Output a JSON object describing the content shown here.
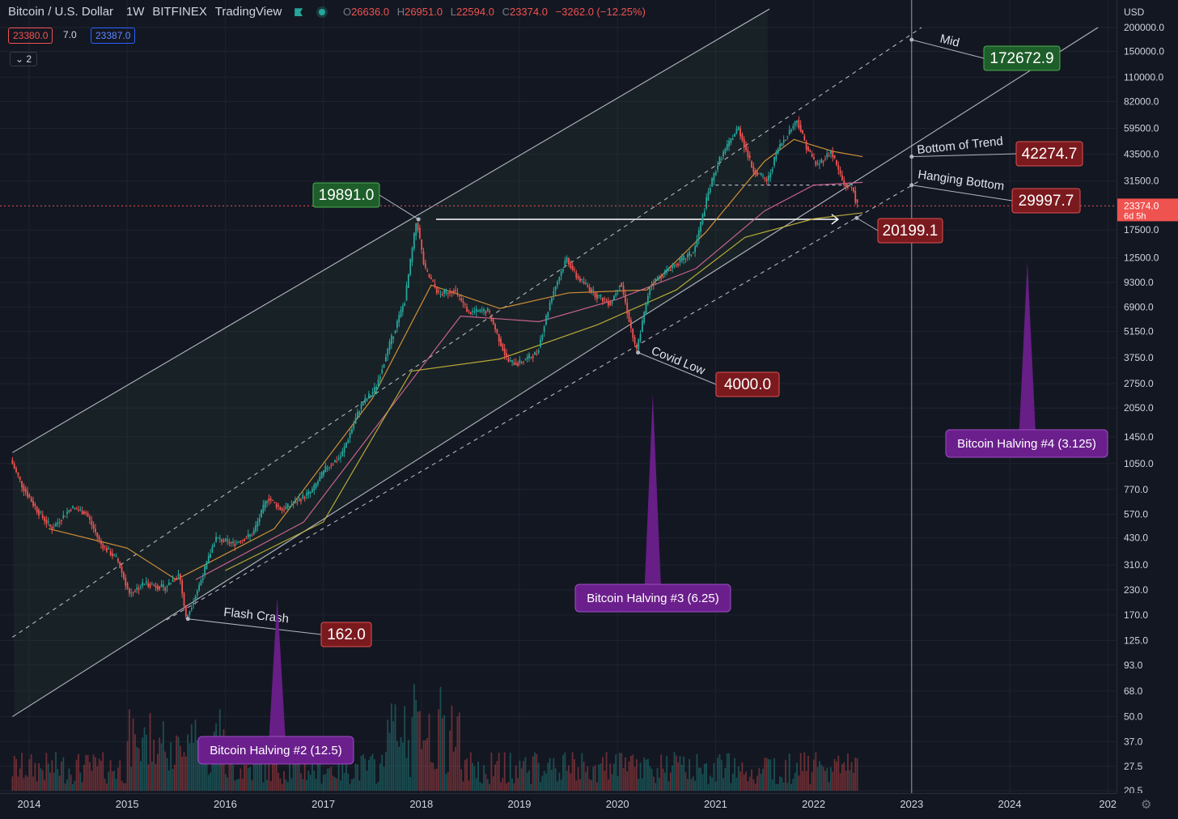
{
  "header": {
    "symbol": "Bitcoin / U.S. Dollar",
    "interval": "1W",
    "exchange": "BITFINEX",
    "source": "TradingView",
    "open_label": "O",
    "open": "26636.0",
    "high_label": "H",
    "high": "26951.0",
    "low_label": "L",
    "low": "22594.0",
    "close_label": "C",
    "close": "23374.0",
    "change": "−3262.0 (−12.25%)",
    "bid": "23380.0",
    "spread": "7.0",
    "ask": "23387.0",
    "indicators_collapsed": "⌄ 2"
  },
  "currency": "USD",
  "settings_icon": "gear-icon",
  "colors": {
    "background": "#131722",
    "up": "#26a69a",
    "down": "#ef5350",
    "channel_line": "#d1d4dc",
    "ema_orange": "#e39a3a",
    "sma_pink": "#d9689a",
    "sma_yellow": "#c8b83a",
    "label_green": "#1e5e2a",
    "label_red": "#7a1a1e",
    "label_purple": "#6b1f8c"
  },
  "chart_data": {
    "type": "candlestick",
    "scale": "log",
    "x_ticks": [
      "2014",
      "2015",
      "2016",
      "2017",
      "2018",
      "2019",
      "2020",
      "2021",
      "2022",
      "2023",
      "2024",
      "202"
    ],
    "y_ticks": [
      "200000.0",
      "150000.0",
      "110000.0",
      "82000.0",
      "59500.0",
      "43500.0",
      "31500.0",
      "17500.0",
      "12500.0",
      "9300.0",
      "6900.0",
      "5150.0",
      "3750.0",
      "2750.0",
      "2050.0",
      "1450.0",
      "1050.0",
      "770.0",
      "570.0",
      "430.0",
      "310.0",
      "230.0",
      "170.0",
      "125.0",
      "93.0",
      "68.0",
      "50.0",
      "37.0",
      "27.5",
      "20.5"
    ],
    "ylim": [
      20.5,
      200000
    ],
    "xlim": [
      "2014",
      "2024.9"
    ],
    "current_price": {
      "value": 23374.0,
      "label": "23374.0",
      "countdown": "6d 5h"
    },
    "price_path": [
      [
        2013.83,
        1100
      ],
      [
        2013.95,
        800
      ],
      [
        2014.1,
        600
      ],
      [
        2014.25,
        480
      ],
      [
        2014.45,
        620
      ],
      [
        2014.6,
        580
      ],
      [
        2014.75,
        400
      ],
      [
        2014.92,
        330
      ],
      [
        2015.04,
        220
      ],
      [
        2015.2,
        250
      ],
      [
        2015.4,
        235
      ],
      [
        2015.55,
        280
      ],
      [
        2015.62,
        162
      ],
      [
        2015.75,
        240
      ],
      [
        2015.92,
        430
      ],
      [
        2016.1,
        400
      ],
      [
        2016.3,
        450
      ],
      [
        2016.45,
        700
      ],
      [
        2016.6,
        600
      ],
      [
        2016.9,
        750
      ],
      [
        2017.05,
        1000
      ],
      [
        2017.2,
        1150
      ],
      [
        2017.4,
        2100
      ],
      [
        2017.55,
        2600
      ],
      [
        2017.7,
        4500
      ],
      [
        2017.85,
        7500
      ],
      [
        2017.97,
        19891
      ],
      [
        2018.05,
        11000
      ],
      [
        2018.2,
        8000
      ],
      [
        2018.35,
        8500
      ],
      [
        2018.5,
        6500
      ],
      [
        2018.7,
        6600
      ],
      [
        2018.9,
        3600
      ],
      [
        2019.0,
        3500
      ],
      [
        2019.2,
        4000
      ],
      [
        2019.35,
        8000
      ],
      [
        2019.5,
        12500
      ],
      [
        2019.6,
        10000
      ],
      [
        2019.8,
        8000
      ],
      [
        2019.95,
        7200
      ],
      [
        2020.05,
        9500
      ],
      [
        2020.21,
        4000
      ],
      [
        2020.35,
        9000
      ],
      [
        2020.6,
        11500
      ],
      [
        2020.8,
        13500
      ],
      [
        2020.95,
        28000
      ],
      [
        2021.05,
        40000
      ],
      [
        2021.25,
        60000
      ],
      [
        2021.4,
        36000
      ],
      [
        2021.55,
        31500
      ],
      [
        2021.65,
        46000
      ],
      [
        2021.85,
        66000
      ],
      [
        2021.95,
        47000
      ],
      [
        2022.05,
        38000
      ],
      [
        2022.2,
        45000
      ],
      [
        2022.33,
        30000
      ],
      [
        2022.42,
        29000
      ],
      [
        2022.46,
        23374
      ]
    ],
    "moving_averages": [
      {
        "color": "#e39a3a",
        "points": [
          [
            2014.2,
            480
          ],
          [
            2015.0,
            380
          ],
          [
            2015.5,
            260
          ],
          [
            2016.5,
            480
          ],
          [
            2017.5,
            2300
          ],
          [
            2018.1,
            9000
          ],
          [
            2018.8,
            6800
          ],
          [
            2019.5,
            8200
          ],
          [
            2020.3,
            8500
          ],
          [
            2020.9,
            17000
          ],
          [
            2021.5,
            40000
          ],
          [
            2021.8,
            52000
          ],
          [
            2022.2,
            45000
          ],
          [
            2022.5,
            42274
          ]
        ]
      },
      {
        "color": "#d9689a",
        "points": [
          [
            2015.7,
            260
          ],
          [
            2016.8,
            520
          ],
          [
            2017.6,
            1800
          ],
          [
            2018.4,
            6200
          ],
          [
            2019.2,
            5800
          ],
          [
            2020.0,
            7600
          ],
          [
            2020.8,
            11000
          ],
          [
            2021.5,
            22000
          ],
          [
            2022.0,
            30000
          ],
          [
            2022.5,
            31000
          ]
        ]
      },
      {
        "color": "#c8b83a",
        "points": [
          [
            2016.0,
            290
          ],
          [
            2017.0,
            520
          ],
          [
            2017.9,
            3200
          ],
          [
            2018.8,
            3700
          ],
          [
            2019.8,
            5600
          ],
          [
            2020.6,
            8500
          ],
          [
            2021.3,
            16000
          ],
          [
            2022.0,
            20000
          ],
          [
            2022.5,
            21500
          ]
        ]
      }
    ],
    "channel": {
      "upper_line": [
        [
          2013.83,
          1200
        ],
        [
          2021.55,
          250000
        ]
      ],
      "mid_line": [
        [
          2013.83,
          130
        ],
        [
          2023.1,
          200000
        ]
      ],
      "center_line": [
        [
          2013.83,
          50
        ],
        [
          2024.9,
          200000
        ]
      ],
      "lower_line": [
        [
          2015.4,
          160
        ],
        [
          2023.1,
          32000
        ]
      ]
    },
    "annotations": [
      {
        "text": "Mid",
        "price_label": "172672.9",
        "tone": "green"
      },
      {
        "text": "Bottom of Trend",
        "price_label": "42274.7",
        "tone": "red"
      },
      {
        "text": "Hanging Bottom",
        "price_label": "29997.7",
        "tone": "red"
      },
      {
        "text": "",
        "price_label": "20199.1",
        "tone": "red"
      },
      {
        "text": "",
        "price_label": "19891.0",
        "tone": "green"
      },
      {
        "text": "Covid Low",
        "price_label": "4000.0",
        "tone": "red"
      },
      {
        "text": "Flash Crash",
        "price_label": "162.0",
        "tone": "red"
      }
    ],
    "halvings": [
      {
        "label": "Bitcoin Halving #2 (12.5)",
        "x": 2016.53
      },
      {
        "label": "Bitcoin Halving #3 (6.25)",
        "x": 2020.36
      },
      {
        "label": "Bitcoin Halving #4 (3.125)",
        "x": 2024.18
      }
    ]
  }
}
